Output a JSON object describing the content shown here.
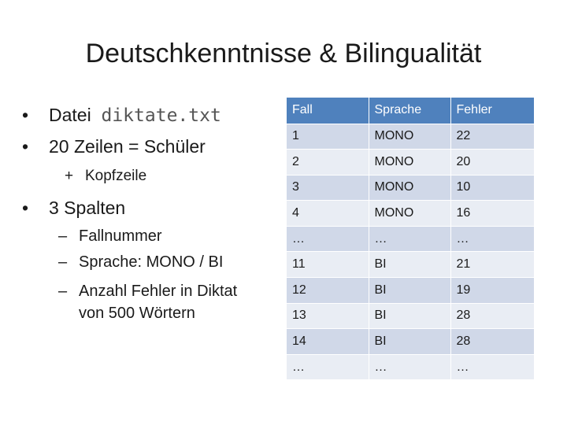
{
  "slide": {
    "title": "Deutschkenntnisse & Bilingualität",
    "bullets": {
      "b1_prefix": "Datei",
      "b1_code": "diktate.txt",
      "b2": "20 Zeilen = Schüler",
      "b2_sub": "Kopfzeile",
      "b3": "3 Spalten",
      "b3_sub1": "Fallnummer",
      "b3_sub2": "Sprache: MONO / BI",
      "b3_sub3_line1": "Anzahl Fehler in Diktat",
      "b3_sub3_line2": "von 500 Wörtern"
    },
    "symbols": {
      "bullet": "•",
      "plus": "+",
      "dash": "–"
    }
  },
  "table": {
    "headers": [
      "Fall",
      "Sprache",
      "Fehler"
    ],
    "rows": [
      [
        "1",
        "MONO",
        "22"
      ],
      [
        "2",
        "MONO",
        "20"
      ],
      [
        "3",
        "MONO",
        "10"
      ],
      [
        "4",
        "MONO",
        "16"
      ],
      [
        "…",
        "…",
        "…"
      ],
      [
        "11",
        "BI",
        "21"
      ],
      [
        "12",
        "BI",
        "19"
      ],
      [
        "13",
        "BI",
        "28"
      ],
      [
        "14",
        "BI",
        "28"
      ],
      [
        "…",
        "…",
        "…"
      ]
    ],
    "colors": {
      "header": "#4f81bd",
      "band_dark": "#d0d8e8",
      "band_light": "#e9edf4"
    }
  }
}
